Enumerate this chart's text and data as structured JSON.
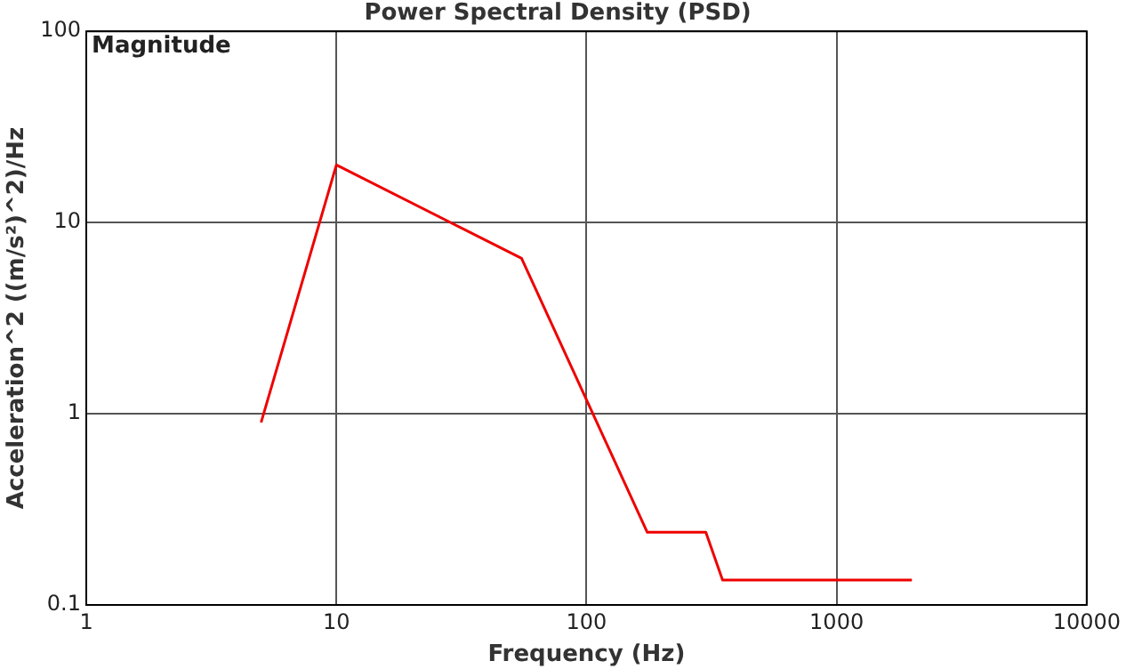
{
  "chart_data": {
    "type": "line",
    "title": "Power Spectral Density (PSD)",
    "xlabel": "Frequency (Hz)",
    "ylabel": "Acceleration^2 ((m/s²)^2)/Hz",
    "annotations": [
      "Magnitude"
    ],
    "x": [
      5,
      10,
      55,
      175,
      300,
      350,
      2000
    ],
    "series": [
      {
        "color": "#ee0000",
        "values": [
          0.9,
          20,
          6.5,
          0.24,
          0.24,
          0.135,
          0.135
        ]
      }
    ],
    "log": "xy",
    "xlim": [
      1,
      10000
    ],
    "xticks": [
      1,
      10,
      100,
      1000,
      10000
    ],
    "ylim": [
      0.1,
      100
    ],
    "yticks": [
      0.1,
      1,
      10,
      100
    ],
    "grid": true,
    "legend": false,
    "marker": "none",
    "line_style": "solid"
  }
}
